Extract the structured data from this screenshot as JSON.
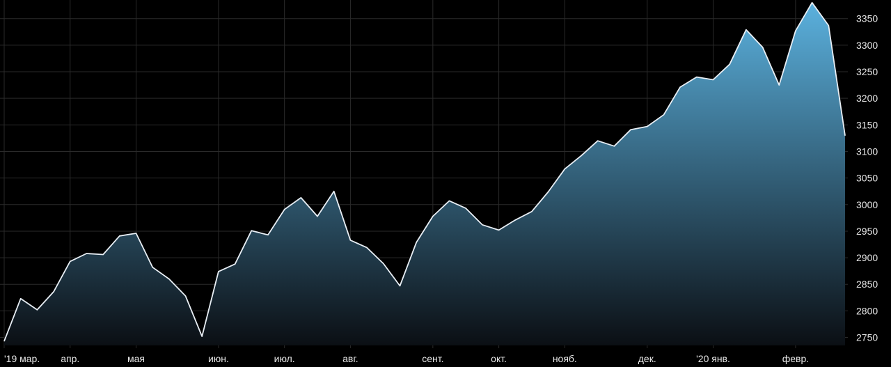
{
  "chart_data": {
    "type": "area",
    "title": "",
    "xlabel": "",
    "ylabel": "",
    "ylim": [
      2735,
      3385
    ],
    "grid": "horizontal",
    "y_ticks": [
      2750,
      2800,
      2850,
      2900,
      2950,
      3000,
      3050,
      3100,
      3150,
      3200,
      3250,
      3300,
      3350
    ],
    "x_ticks": [
      "'19 мар.",
      "апр.",
      "мая",
      "июн.",
      "июл.",
      "авг.",
      "сент.",
      "окт.",
      "нояб.",
      "дек.",
      "'20 янв.",
      "февр."
    ],
    "x_tick_index": [
      0,
      4,
      8,
      13,
      17,
      21,
      26,
      30,
      34,
      39,
      43,
      48
    ],
    "series": [
      {
        "values": [
          2743,
          2823,
          2802,
          2836,
          2893,
          2908,
          2906,
          2941,
          2946,
          2882,
          2860,
          2828,
          2752,
          2874,
          2888,
          2951,
          2943,
          2991,
          3013,
          2978,
          3025,
          2933,
          2919,
          2889,
          2847,
          2929,
          2978,
          3007,
          2993,
          2962,
          2952,
          2971,
          2987,
          3024,
          3067,
          3092,
          3120,
          3110,
          3141,
          3147,
          3169,
          3221,
          3240,
          3235,
          3264,
          3329,
          3296,
          3225,
          3327,
          3380,
          3337,
          3130
        ]
      }
    ],
    "colors": {
      "line": "#e8eef4",
      "fill_top": "#5bb1de",
      "fill_bottom": "#0b0f14"
    }
  }
}
